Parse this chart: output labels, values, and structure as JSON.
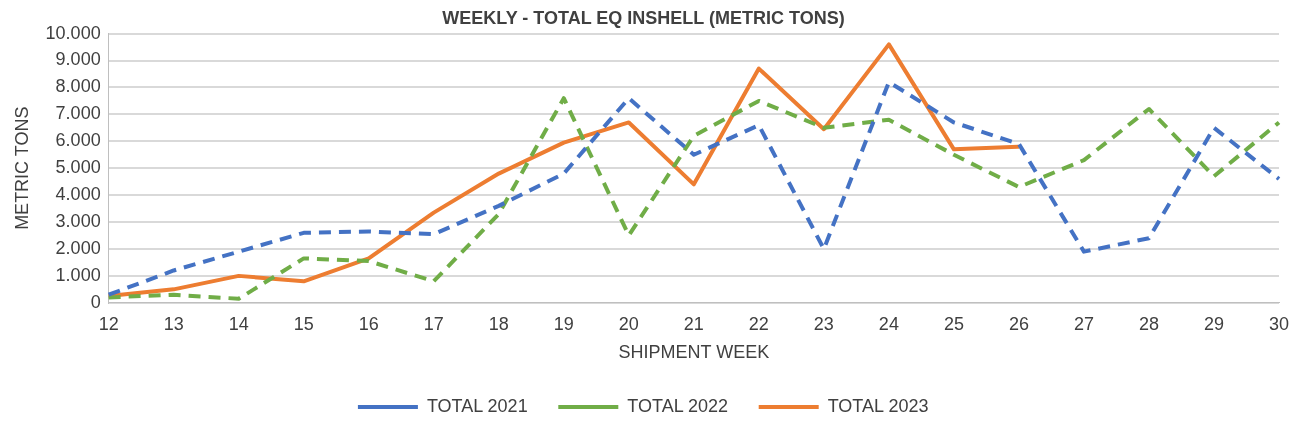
{
  "chart_data": {
    "type": "line",
    "title": "WEEKLY - TOTAL EQ INSHELL (METRIC TONS)",
    "xlabel": "SHIPMENT WEEK",
    "ylabel": "METRIC TONS",
    "categories": [
      "12",
      "13",
      "14",
      "15",
      "16",
      "17",
      "18",
      "19",
      "20",
      "21",
      "22",
      "23",
      "24",
      "25",
      "26",
      "27",
      "28",
      "29",
      "30"
    ],
    "ylim": [
      0,
      10000
    ],
    "yticks": [
      0,
      {
        "value": 1000,
        "label": "1.000"
      },
      {
        "value": 2000,
        "label": "2.000"
      },
      {
        "value": 3000,
        "label": "3.000"
      },
      {
        "value": 4000,
        "label": "4.000"
      },
      {
        "value": 5000,
        "label": "5.000"
      },
      {
        "value": 6000,
        "label": "6.000"
      },
      {
        "value": 7000,
        "label": "7.000"
      },
      {
        "value": 8000,
        "label": "8.000"
      },
      {
        "value": 9000,
        "label": "9.000"
      },
      {
        "value": 10000,
        "label": "10.000"
      }
    ],
    "grid": "y",
    "legend": "bottom",
    "marker": "none",
    "series": [
      {
        "name": "TOTAL 2021",
        "color": "#4472c4",
        "line_style": "dashed",
        "values": [
          300,
          1200,
          1900,
          2600,
          2650,
          2550,
          3600,
          4800,
          7600,
          5500,
          6600,
          2000,
          8200,
          6700,
          5900,
          1900,
          2400,
          6500,
          4600
        ]
      },
      {
        "name": "TOTAL 2022",
        "color": "#70ad47",
        "line_style": "dashed",
        "values": [
          200,
          300,
          150,
          1650,
          1550,
          800,
          3300,
          7600,
          2500,
          6200,
          7500,
          6500,
          6800,
          5500,
          4300,
          5300,
          7200,
          4700,
          6700
        ]
      },
      {
        "name": "TOTAL 2023",
        "color": "#ed7d31",
        "line_style": "solid",
        "values": [
          250,
          500,
          1000,
          800,
          1650,
          3350,
          4800,
          5950,
          6700,
          4400,
          8700,
          6450,
          9600,
          5700,
          5800,
          null,
          null,
          null,
          null
        ]
      }
    ]
  }
}
